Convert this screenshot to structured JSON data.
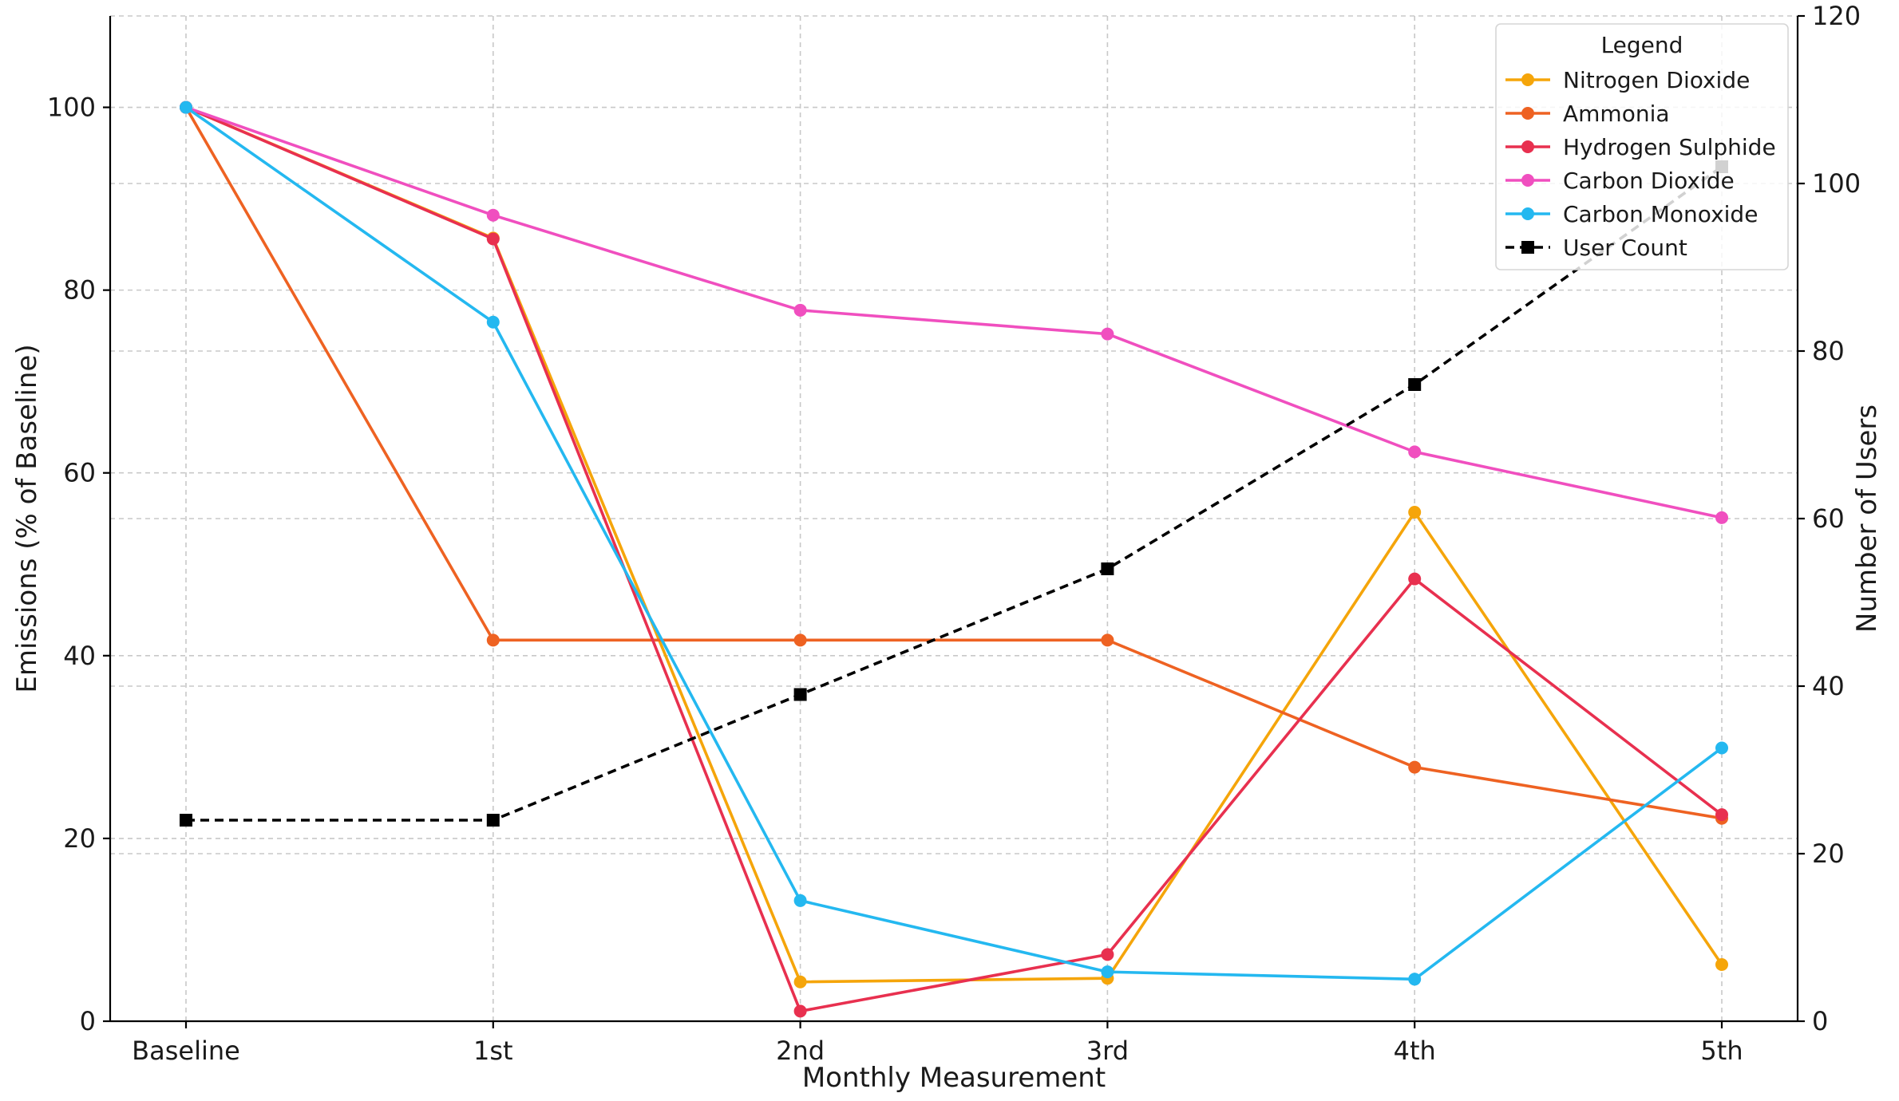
{
  "chart_data": {
    "type": "line",
    "title": "",
    "xlabel": "Monthly Measurement",
    "ylabel": "Emissions (% of Baseline)",
    "y2label": "Number of Users",
    "categories": [
      "Baseline",
      "1st",
      "2nd",
      "3rd",
      "4th",
      "5th"
    ],
    "ylim": [
      0,
      110
    ],
    "y2lim": [
      0,
      120
    ],
    "yticks": [
      0,
      20,
      40,
      60,
      80,
      100
    ],
    "y2ticks": [
      0,
      20,
      40,
      60,
      80,
      100,
      120
    ],
    "grid": true,
    "legend": {
      "title": "Legend",
      "placement": "top-right"
    },
    "series": [
      {
        "name": "Nitrogen Dioxide",
        "axis": "left",
        "color": "#f5a50a",
        "marker": "circle",
        "dash": "solid",
        "values": [
          100,
          85.7,
          4.3,
          4.7,
          55.7,
          6.2
        ]
      },
      {
        "name": "Ammonia",
        "axis": "left",
        "color": "#ee6222",
        "marker": "circle",
        "dash": "solid",
        "values": [
          100,
          41.7,
          41.7,
          41.7,
          27.8,
          22.2
        ]
      },
      {
        "name": "Hydrogen Sulphide",
        "axis": "left",
        "color": "#e8304f",
        "marker": "circle",
        "dash": "solid",
        "values": [
          100,
          85.6,
          1.1,
          7.3,
          48.4,
          22.6
        ]
      },
      {
        "name": "Carbon Dioxide",
        "axis": "left",
        "color": "#f04fbf",
        "marker": "circle",
        "dash": "solid",
        "values": [
          100,
          88.2,
          77.8,
          75.2,
          62.3,
          55.1
        ]
      },
      {
        "name": "Carbon Monoxide",
        "axis": "left",
        "color": "#24b8f0",
        "marker": "circle",
        "dash": "solid",
        "values": [
          100,
          76.5,
          13.2,
          5.4,
          4.6,
          29.9
        ]
      },
      {
        "name": "User Count",
        "axis": "right",
        "color": "#000000",
        "marker": "square",
        "dash": "dashed",
        "values": [
          24,
          24,
          39,
          54,
          76,
          102
        ]
      }
    ]
  }
}
